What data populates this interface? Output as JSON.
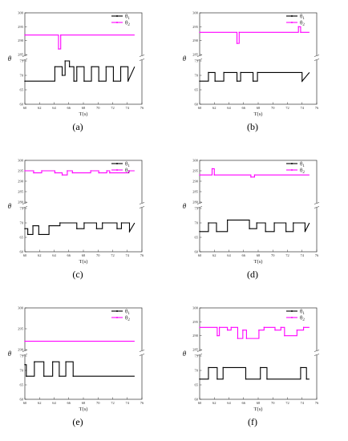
{
  "chart_data": [
    {
      "type": "line",
      "panel": "a",
      "caption": "(a)",
      "xlabel": "T(s)",
      "ylabel": "θ",
      "xlim": [
        60,
        76
      ],
      "xticks": [
        60,
        62,
        64,
        66,
        68,
        70,
        72,
        74,
        76
      ],
      "yticks_upper": [
        285,
        290,
        295,
        300
      ],
      "yticks_lower": [
        60,
        65,
        70,
        75
      ],
      "legend": [
        "θ1",
        "θ2"
      ],
      "legend_position": "top-right",
      "series": [
        {
          "name": "θ1",
          "color": "#000000",
          "x": [
            60,
            64.1,
            64.1,
            65.1,
            65.1,
            65.5,
            65.5,
            66.1,
            66.1,
            66.7,
            66.7,
            67.1,
            67.1,
            68.1,
            68.1,
            69.1,
            69.1,
            70.1,
            70.1,
            71.1,
            71.1,
            72.1,
            72.1,
            73.1,
            73.1,
            74.1,
            74.1,
            75
          ],
          "y": [
            68,
            68,
            73,
            73,
            70,
            70,
            75,
            75,
            73,
            73,
            68,
            68,
            73,
            73,
            68,
            68,
            73,
            73,
            68,
            68,
            73,
            73,
            68,
            68,
            73,
            73,
            68,
            73
          ]
        },
        {
          "name": "θ2",
          "color": "#ff00ff",
          "x": [
            60,
            64.6,
            64.6,
            64.9,
            64.9,
            75
          ],
          "y": [
            292,
            292,
            287,
            287,
            292,
            292
          ]
        }
      ]
    },
    {
      "type": "line",
      "panel": "b",
      "caption": "(b)",
      "xlabel": "T(s)",
      "ylabel": "θ",
      "xlim": [
        60,
        76
      ],
      "xticks": [
        60,
        62,
        64,
        66,
        68,
        70,
        72,
        74,
        76
      ],
      "yticks_upper": [
        285,
        290,
        295,
        300
      ],
      "yticks_lower": [
        60,
        65,
        70,
        75
      ],
      "legend": [
        "θ1",
        "θ2"
      ],
      "legend_position": "top-right",
      "series": [
        {
          "name": "θ1",
          "color": "#000000",
          "x": [
            60,
            61.2,
            61.2,
            62.1,
            62.1,
            63.3,
            63.3,
            65.1,
            65.1,
            65.6,
            65.6,
            67.3,
            67.3,
            67.9,
            67.9,
            74,
            74,
            75
          ],
          "y": [
            68,
            68,
            71,
            71,
            68,
            68,
            71,
            71,
            68,
            68,
            71,
            71,
            68,
            68,
            71,
            71,
            68,
            71
          ]
        },
        {
          "name": "θ2",
          "color": "#ff00ff",
          "x": [
            60,
            65.1,
            65.1,
            65.4,
            65.4,
            73.5,
            73.5,
            73.8,
            73.8,
            75
          ],
          "y": [
            293,
            293,
            289,
            289,
            293,
            293,
            295,
            295,
            293,
            293
          ]
        }
      ]
    },
    {
      "type": "line",
      "panel": "c",
      "caption": "(c)",
      "xlabel": "T(s)",
      "ylabel": "θ",
      "xlim": [
        60,
        76
      ],
      "xticks": [
        60,
        62,
        64,
        66,
        68,
        70,
        72,
        74,
        76
      ],
      "yticks_upper": [
        280,
        285,
        290,
        295,
        300
      ],
      "yticks_lower": [
        60,
        65,
        70,
        75
      ],
      "legend": [
        "θ1",
        "θ2"
      ],
      "legend_position": "top-right",
      "series": [
        {
          "name": "θ1",
          "color": "#000000",
          "x": [
            60,
            60.4,
            60.4,
            61.1,
            61.1,
            61.9,
            61.9,
            63.3,
            63.3,
            64.8,
            64.8,
            67.1,
            67.1,
            68.1,
            68.1,
            69.8,
            69.8,
            70.6,
            70.6,
            72.6,
            72.6,
            73.2,
            73.2,
            74.3,
            74.3,
            75
          ],
          "y": [
            68,
            68,
            66,
            66,
            69,
            69,
            66,
            66,
            69,
            69,
            70,
            70,
            68,
            68,
            70,
            70,
            68,
            68,
            70,
            70,
            68,
            68,
            70,
            70,
            67,
            70
          ]
        },
        {
          "name": "θ2",
          "color": "#ff00ff",
          "x": [
            60,
            61.2,
            61.2,
            62.3,
            62.3,
            64.1,
            64.1,
            65.1,
            65.1,
            65.8,
            65.8,
            66.5,
            66.5,
            69,
            69,
            70.1,
            70.1,
            71.2,
            71.2,
            71.6,
            71.6,
            74.2,
            74.2,
            75
          ],
          "y": [
            295,
            295,
            294,
            294,
            295,
            295,
            294,
            294,
            293,
            293,
            295,
            295,
            294,
            294,
            295,
            295,
            294,
            294,
            295,
            295,
            294,
            294,
            295,
            295
          ]
        }
      ]
    },
    {
      "type": "line",
      "panel": "d",
      "caption": "(d)",
      "xlabel": "T(s)",
      "ylabel": "θ",
      "xlim": [
        60,
        76
      ],
      "xticks": [
        60,
        62,
        64,
        66,
        68,
        70,
        72,
        74,
        76
      ],
      "yticks_upper": [
        280,
        285,
        290,
        295,
        300
      ],
      "yticks_lower": [
        60,
        65,
        70,
        75
      ],
      "legend": [
        "θ1",
        "θ2"
      ],
      "legend_position": "top-right",
      "series": [
        {
          "name": "θ1",
          "color": "#000000",
          "x": [
            60,
            61.2,
            61.2,
            62.3,
            62.3,
            63.8,
            63.8,
            66.8,
            66.8,
            67.8,
            67.8,
            69,
            69,
            70.2,
            70.2,
            71.8,
            71.8,
            72.8,
            72.8,
            74.4,
            74.4,
            75
          ],
          "y": [
            67,
            67,
            70,
            70,
            67,
            67,
            71,
            71,
            68,
            68,
            70,
            70,
            67,
            67,
            70,
            70,
            67,
            67,
            70,
            70,
            67,
            70
          ]
        },
        {
          "name": "θ2",
          "color": "#ff00ff",
          "x": [
            60,
            61.7,
            61.7,
            62,
            62,
            67,
            67,
            67.5,
            67.5,
            75
          ],
          "y": [
            293,
            293,
            296,
            296,
            293,
            293,
            292,
            292,
            293,
            293
          ]
        }
      ]
    },
    {
      "type": "line",
      "panel": "e",
      "caption": "(e)",
      "xlabel": "T(s)",
      "ylabel": "θ",
      "xlim": [
        60,
        76
      ],
      "xticks": [
        60,
        62,
        64,
        66,
        68,
        70,
        72,
        74,
        76
      ],
      "yticks_upper": [
        290,
        295,
        300
      ],
      "yticks_lower": [
        60,
        65,
        70,
        75
      ],
      "legend": [
        "θ1",
        "θ2"
      ],
      "legend_position": "top-right",
      "series": [
        {
          "name": "θ1",
          "color": "#000000",
          "x": [
            60,
            60.2,
            60.2,
            61.3,
            61.3,
            62.6,
            62.6,
            63.8,
            63.8,
            64.7,
            64.7,
            65.6,
            65.6,
            66.6,
            66.6,
            75
          ],
          "y": [
            72,
            72,
            68,
            68,
            73,
            73,
            68,
            68,
            73,
            73,
            68,
            68,
            73,
            73,
            68,
            68
          ]
        },
        {
          "name": "θ2",
          "color": "#ff00ff",
          "x": [
            60,
            75
          ],
          "y": [
            292,
            292
          ]
        }
      ]
    },
    {
      "type": "line",
      "panel": "f",
      "caption": "(f)",
      "xlabel": "T(s)",
      "ylabel": "θ",
      "xlim": [
        60,
        76
      ],
      "xticks": [
        60,
        62,
        64,
        66,
        68,
        70,
        72,
        74,
        76
      ],
      "yticks_upper": [
        285,
        290,
        295,
        300
      ],
      "yticks_lower": [
        60,
        65,
        70,
        75
      ],
      "legend": [
        "θ1",
        "θ2"
      ],
      "legend_position": "top-right",
      "series": [
        {
          "name": "θ1",
          "color": "#000000",
          "x": [
            60,
            61.2,
            61.2,
            62.4,
            62.4,
            63.2,
            63.2,
            66.3,
            66.3,
            68.3,
            68.3,
            69.2,
            69.2,
            73.8,
            73.8,
            74.6,
            74.6,
            75
          ],
          "y": [
            67,
            67,
            71,
            71,
            67,
            67,
            71,
            71,
            67,
            67,
            71,
            71,
            67,
            67,
            71,
            71,
            67,
            67
          ]
        },
        {
          "name": "θ2",
          "color": "#ff00ff",
          "x": [
            60,
            62.4,
            62.4,
            62.7,
            62.7,
            63.8,
            63.8,
            64.3,
            64.3,
            65.2,
            65.2,
            65.9,
            65.9,
            66.4,
            66.4,
            68.1,
            68.1,
            68.8,
            68.8,
            70.3,
            70.3,
            71.1,
            71.1,
            71.6,
            71.6,
            73.3,
            73.3,
            74.2,
            74.2,
            75
          ],
          "y": [
            293,
            293,
            290,
            290,
            293,
            293,
            292,
            292,
            293,
            293,
            289,
            289,
            292,
            292,
            289,
            289,
            292,
            292,
            293,
            293,
            292,
            292,
            293,
            293,
            290,
            290,
            292,
            292,
            293,
            293
          ]
        }
      ]
    }
  ]
}
